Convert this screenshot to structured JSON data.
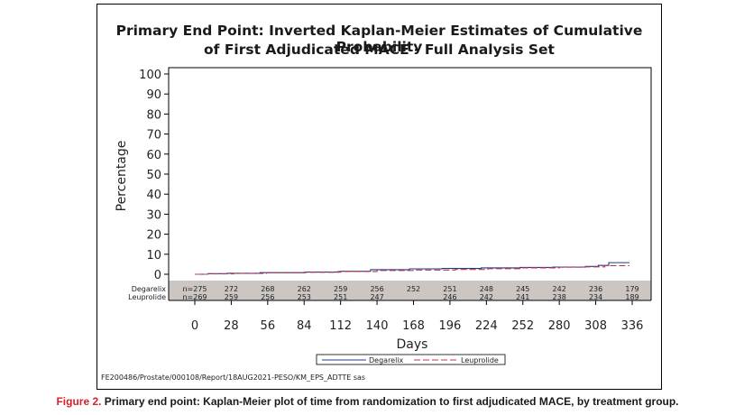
{
  "figure": {
    "title_line1": "Primary End Point: Inverted Kaplan-Meier Estimates of Cumulative Probability",
    "title_line2": "of First Adjudicated MACE - Full Analysis Set",
    "footnote": "FE200486/Prostate/000108/Report/18AUG2021-PESO/KM_EPS_ADTTE sas",
    "caption_label": "Figure 2.",
    "caption_text": " Primary end point: Kaplan-Meier plot of time from randomization to first adjudicated MACE, by treatment group."
  },
  "chart_data": {
    "type": "line",
    "title": "Primary End Point: Inverted Kaplan-Meier Estimates of Cumulative Probability of First Adjudicated MACE - Full Analysis Set",
    "xlabel": "Days",
    "ylabel": "Percentage",
    "xlim": [
      0,
      336
    ],
    "ylim": [
      0,
      100
    ],
    "xticks": [
      0,
      28,
      56,
      84,
      112,
      140,
      168,
      196,
      224,
      252,
      280,
      308,
      336
    ],
    "yticks": [
      0,
      10,
      20,
      30,
      40,
      50,
      60,
      70,
      80,
      90,
      100
    ],
    "series": [
      {
        "name": "Degarelix",
        "color": "#1f3b8a",
        "style": "solid",
        "x": [
          0,
          10,
          25,
          50,
          85,
          112,
          135,
          165,
          190,
          220,
          250,
          275,
          300,
          310,
          318,
          334
        ],
        "y": [
          0,
          0.3,
          0.5,
          0.8,
          1.1,
          1.5,
          2.3,
          2.7,
          2.9,
          3.2,
          3.4,
          3.6,
          3.9,
          4.4,
          5.8,
          5.8
        ]
      },
      {
        "name": "Leuprolide",
        "color": "#c0394e",
        "style": "dashed",
        "x": [
          0,
          10,
          30,
          55,
          84,
          110,
          140,
          170,
          200,
          225,
          250,
          280,
          300,
          315,
          334
        ],
        "y": [
          0,
          0.2,
          0.4,
          0.7,
          1.0,
          1.4,
          1.9,
          2.1,
          2.4,
          2.8,
          3.2,
          3.5,
          3.7,
          4.3,
          4.3
        ]
      }
    ],
    "at_risk": {
      "times": [
        0,
        28,
        56,
        84,
        112,
        140,
        168,
        196,
        224,
        252,
        280,
        308,
        336
      ],
      "rows": [
        {
          "label": "Degarelix",
          "values": [
            "n=275",
            "272",
            "268",
            "262",
            "259",
            "256",
            "252",
            "251",
            "248",
            "245",
            "242",
            "236",
            "179"
          ]
        },
        {
          "label": "Leuprolide",
          "values": [
            "n=269",
            "259",
            "256",
            "253",
            "251",
            "247",
            "",
            "246",
            "242",
            "241",
            "238",
            "234",
            "189"
          ]
        }
      ]
    },
    "legend": [
      {
        "label": "Degarelix",
        "color": "#1f3b8a",
        "style": "solid"
      },
      {
        "label": "Leuprolide",
        "color": "#c0394e",
        "style": "dashed"
      }
    ],
    "legend_position": "bottom"
  }
}
